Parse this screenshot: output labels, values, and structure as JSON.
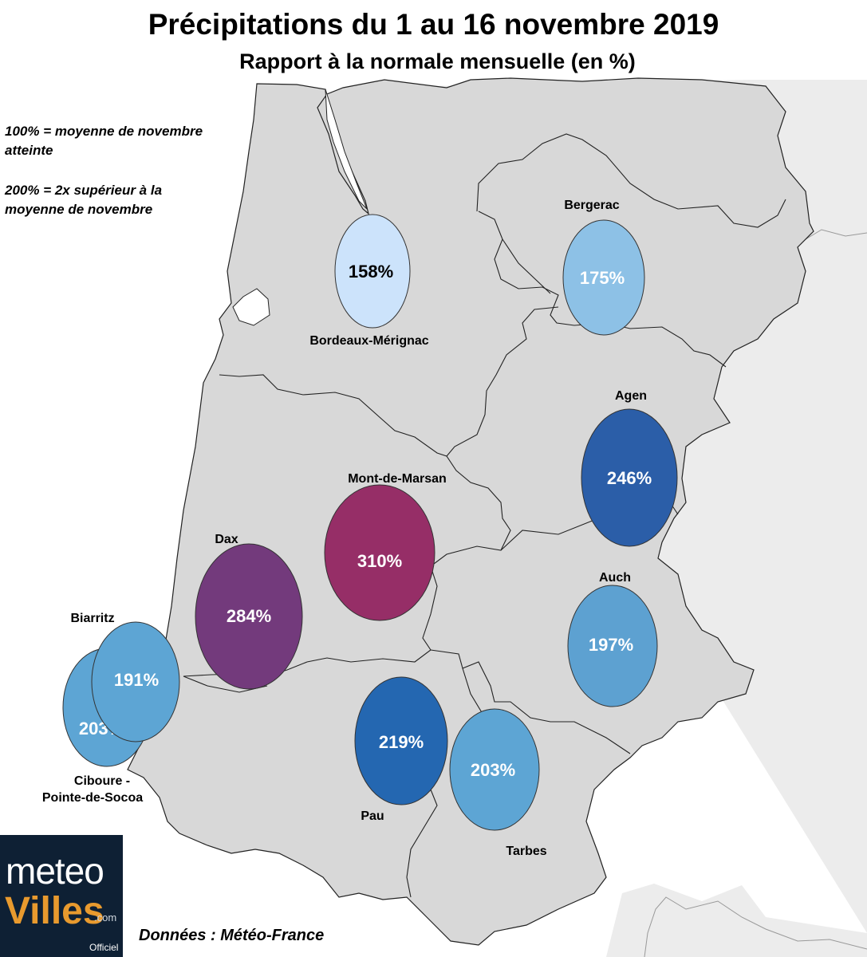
{
  "title": "Précipitations du 1 au 16 novembre 2019",
  "subtitle": "Rapport à la normale mensuelle (en %)",
  "legend": {
    "line1": "100% = moyenne de novembre",
    "line2": "atteinte",
    "line3": "200% = 2x supérieur à la",
    "line4": "moyenne de novembre"
  },
  "stations": [
    {
      "name": "Bordeaux-Mérignac",
      "value": "158%",
      "color": "#cce3fb"
    },
    {
      "name": "Bergerac",
      "value": "175%",
      "color": "#8dc1e6"
    },
    {
      "name": "Agen",
      "value": "246%",
      "color": "#2b5ea8"
    },
    {
      "name": "Mont-de-Marsan",
      "value": "310%",
      "color": "#962e67"
    },
    {
      "name": "Dax",
      "value": "284%",
      "color": "#733a7c"
    },
    {
      "name": "Auch",
      "value": "197%",
      "color": "#5da1d1"
    },
    {
      "name": "Biarritz",
      "value": "191%",
      "color": "#5da5d4"
    },
    {
      "name": "Ciboure -",
      "name2": "Pointe-de-Socoa",
      "value": "203%",
      "color": "#5da5d4"
    },
    {
      "name": "Pau",
      "value": "219%",
      "color": "#2467b1"
    },
    {
      "name": "Tarbes",
      "value": "203%",
      "color": "#5da5d4"
    }
  ],
  "logo": {
    "meteo": "meteo",
    "villes": "Villes",
    "com": ".com",
    "officiel": "Officiel"
  },
  "source": "Données : Météo-France"
}
